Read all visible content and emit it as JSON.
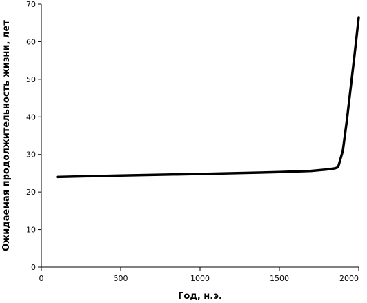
{
  "chart_data": {
    "type": "line",
    "title": "",
    "xlabel": "Год, н.э.",
    "ylabel": "Ожидаемая продолжительность жизни, лет",
    "xlim": [
      0,
      2000
    ],
    "ylim": [
      0,
      70
    ],
    "xticks": [
      0,
      500,
      1000,
      1500,
      2000
    ],
    "yticks": [
      0,
      10,
      20,
      30,
      40,
      50,
      60,
      70
    ],
    "grid": false,
    "legend": "none",
    "line_color": "#000000",
    "series": [
      {
        "x": [
          100,
          500,
          1000,
          1500,
          1700,
          1800,
          1850,
          1870,
          1900,
          1925,
          1950,
          1975,
          2000
        ],
        "values": [
          24.0,
          24.4,
          24.8,
          25.3,
          25.6,
          26.0,
          26.3,
          26.6,
          31.0,
          39.0,
          48.0,
          57.0,
          66.5
        ]
      }
    ]
  }
}
